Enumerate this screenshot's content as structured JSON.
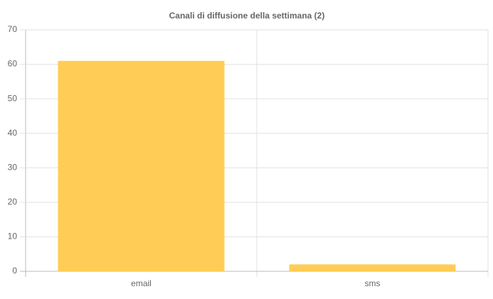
{
  "chart_data": {
    "type": "bar",
    "title": "Canali di diffusione della settimana (2)",
    "categories": [
      "email",
      "sms"
    ],
    "values": [
      61,
      2
    ],
    "color": "#ffcd56",
    "ylim": [
      0,
      70
    ],
    "yticks": [
      0,
      10,
      20,
      30,
      40,
      50,
      60,
      70
    ],
    "grid": true
  }
}
